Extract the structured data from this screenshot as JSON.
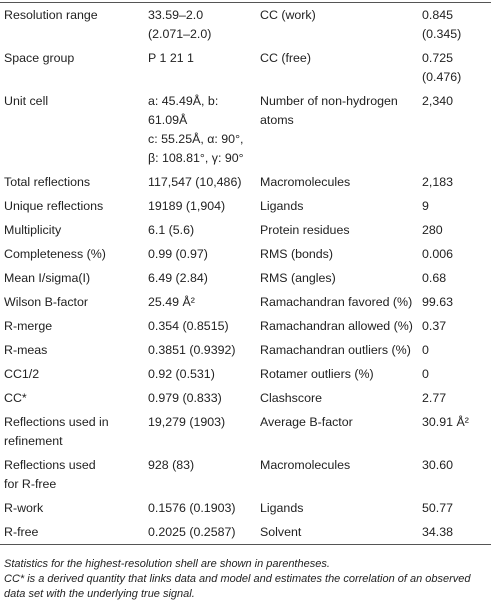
{
  "table": {
    "rows": [
      [
        "Resolution range",
        "33.59–2.0\n(2.071–2.0)",
        "CC (work)",
        "0.845\n(0.345)"
      ],
      [
        "Space group",
        "P 1 21 1",
        "CC (free)",
        "0.725\n(0.476)"
      ],
      [
        "Unit cell",
        "a: 45.49Å, b: 61.09Å\nc: 55.25Å, α: 90°,\nβ: 108.81°, γ: 90°",
        "Number of non-hydrogen\natoms",
        "2,340"
      ],
      [
        "Total reflections",
        "117,547 (10,486)",
        "Macromolecules",
        "2,183"
      ],
      [
        "Unique reflections",
        "19189 (1,904)",
        "Ligands",
        "9"
      ],
      [
        "Multiplicity",
        "6.1 (5.6)",
        "Protein residues",
        "280"
      ],
      [
        "Completeness (%)",
        "0.99 (0.97)",
        "RMS (bonds)",
        "0.006"
      ],
      [
        "Mean I/sigma(I)",
        "6.49 (2.84)",
        "RMS (angles)",
        "0.68"
      ],
      [
        "Wilson B-factor",
        "25.49 Å²",
        "Ramachandran favored (%)",
        "99.63"
      ],
      [
        "R-merge",
        "0.354 (0.8515)",
        "Ramachandran allowed (%)",
        "0.37"
      ],
      [
        "R-meas",
        "0.3851 (0.9392)",
        "Ramachandran outliers (%)",
        "0"
      ],
      [
        "CC1/2",
        "0.92 (0.531)",
        "Rotamer outliers (%)",
        "0"
      ],
      [
        "CC*",
        "0.979 (0.833)",
        "Clashscore",
        "2.77"
      ],
      [
        "Reflections used in\nrefinement",
        "19,279 (1903)",
        "Average B-factor",
        "30.91 Å²"
      ],
      [
        "Reflections used\nfor R-free",
        "928 (83)",
        "Macromolecules",
        "30.60"
      ],
      [
        "R-work",
        "0.1576 (0.1903)",
        "Ligands",
        "50.77"
      ],
      [
        "R-free",
        "0.2025 (0.2587)",
        "Solvent",
        "34.38"
      ]
    ]
  },
  "notes": [
    "Statistics for the highest-resolution shell are shown in parentheses.",
    "CC* is a derived quantity that links data and model and estimates the correlation of an observed data set with the underlying true signal."
  ]
}
